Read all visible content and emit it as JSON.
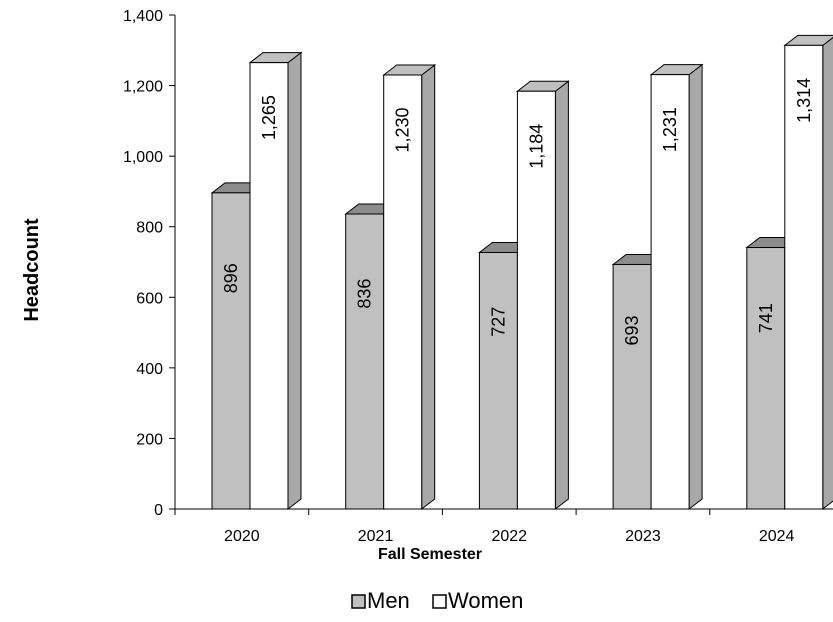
{
  "chart_data": {
    "type": "bar",
    "style": "3d-clustered-column",
    "categories": [
      "2020",
      "2021",
      "2022",
      "2023",
      "2024"
    ],
    "series": [
      {
        "name": "Men",
        "values": [
          896,
          836,
          727,
          693,
          741
        ],
        "color": "#c0c0c0",
        "labels": [
          "896",
          "836",
          "727",
          "693",
          "741"
        ]
      },
      {
        "name": "Women",
        "values": [
          1265,
          1230,
          1184,
          1231,
          1314
        ],
        "color": "#ffffff",
        "labels": [
          "1,265",
          "1,230",
          "1,184",
          "1,231",
          "1,314"
        ]
      }
    ],
    "xlabel": "Fall Semester",
    "ylabel": "Headcount",
    "ylim": [
      0,
      1400
    ],
    "yticks": [
      0,
      200,
      400,
      600,
      800,
      1000,
      1200,
      1400
    ],
    "ytick_labels": [
      "0",
      "200",
      "400",
      "600",
      "800",
      "1,000",
      "1,200",
      "1,400"
    ],
    "grid": false,
    "legend_position": "bottom"
  }
}
